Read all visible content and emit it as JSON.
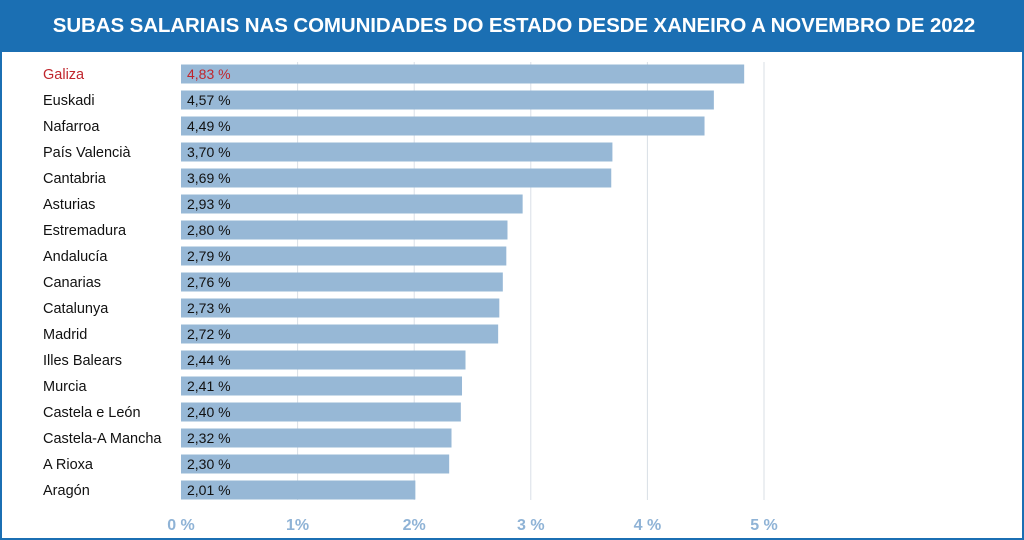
{
  "title": "SUBAS SALARIAIS NAS COMUNIDADES DO ESTADO DESDE XANEIRO A NOVEMBRO DE 2022",
  "colors": {
    "header": "#1b6fb3",
    "bar": "#97b8d6",
    "highlight_text": "#c0262d",
    "label_text": "#111111",
    "axis_text": "#8fb3d6",
    "grid": "#d9dfe6"
  },
  "chart_data": {
    "type": "bar",
    "orientation": "horizontal",
    "title": "SUBAS SALARIAIS NAS COMUNIDADES DO ESTADO DESDE XANEIRO A NOVEMBRO DE 2022",
    "xlabel": "",
    "ylabel": "",
    "xlim": [
      0,
      5
    ],
    "grid": true,
    "legend": "none",
    "highlight": "Galiza",
    "categories": [
      "Galiza",
      "Euskadi",
      "Nafarroa",
      "País Valencià",
      "Cantabria",
      "Asturias",
      "Estremadura",
      "Andalucía",
      "Canarias",
      "Catalunya",
      "Madrid",
      "Illes Balears",
      "Murcia",
      "Castela e León",
      "Castela-A Mancha",
      "A Rioxa",
      "Aragón"
    ],
    "values": [
      4.83,
      4.57,
      4.49,
      3.7,
      3.69,
      2.93,
      2.8,
      2.79,
      2.76,
      2.73,
      2.72,
      2.44,
      2.41,
      2.4,
      2.32,
      2.3,
      2.01
    ],
    "value_labels": [
      "4,83 %",
      "4,57 %",
      "4,49 %",
      "3,70 %",
      "3,69 %",
      "2,93 %",
      "2,80 %",
      "2,79 %",
      "2,76 %",
      "2,73 %",
      "2,72 %",
      "2,44 %",
      "2,41 %",
      "2,40 %",
      "2,32 %",
      "2,30 %",
      "2,01 %"
    ],
    "ticks": [
      0,
      1,
      2,
      3,
      4,
      5
    ],
    "tick_labels": [
      "0 %",
      "1%",
      "2%",
      "3 %",
      "4 %",
      "5 %"
    ]
  }
}
